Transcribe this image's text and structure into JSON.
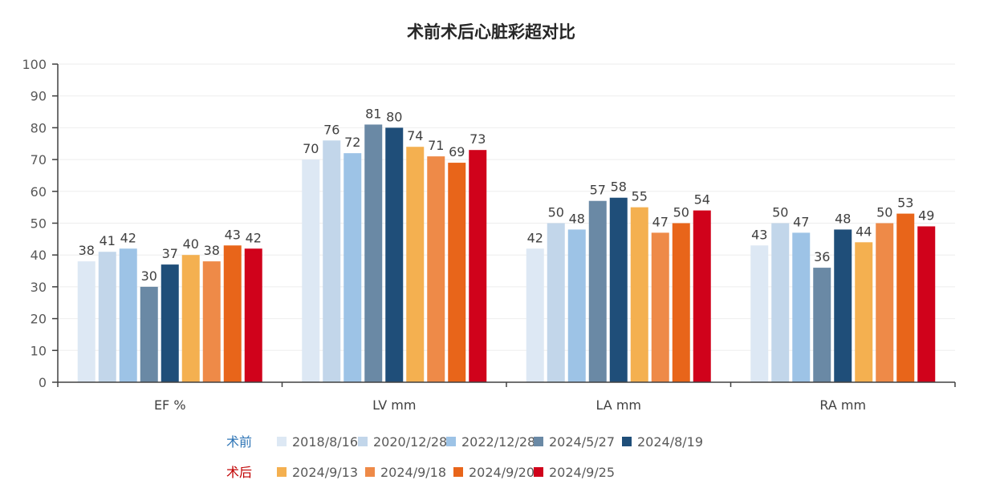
{
  "chart_data": {
    "type": "bar",
    "title": "术前术后心脏彩超对比",
    "categories": [
      "EF %",
      "LV mm",
      "LA mm",
      "RA mm"
    ],
    "ylim": [
      0,
      100
    ],
    "yticks": [
      0,
      10,
      20,
      30,
      40,
      50,
      60,
      70,
      80,
      90,
      100
    ],
    "grid": true,
    "legend_position": "bottom",
    "legend_groups": [
      {
        "label": "术前",
        "color": "#2e75b6",
        "series": [
          0,
          1,
          2,
          3,
          4
        ]
      },
      {
        "label": "术后",
        "color": "#c00000",
        "series": [
          5,
          6,
          7,
          8
        ]
      }
    ],
    "series": [
      {
        "name": "2018/8/16",
        "color": "#dde8f4",
        "values": [
          38,
          70,
          42,
          43
        ]
      },
      {
        "name": "2020/12/28",
        "color": "#c2d6ea",
        "values": [
          41,
          76,
          50,
          50
        ]
      },
      {
        "name": "2022/12/28",
        "color": "#9dc3e6",
        "values": [
          42,
          72,
          48,
          47
        ]
      },
      {
        "name": "2024/5/27",
        "color": "#6a89a5",
        "values": [
          30,
          81,
          57,
          36
        ]
      },
      {
        "name": "2024/8/19",
        "color": "#1f4e79",
        "values": [
          37,
          80,
          58,
          48
        ]
      },
      {
        "name": "2024/9/13",
        "color": "#f4b050",
        "values": [
          40,
          74,
          55,
          44
        ]
      },
      {
        "name": "2024/9/18",
        "color": "#ee8a48",
        "values": [
          38,
          71,
          47,
          50
        ]
      },
      {
        "name": "2024/9/20",
        "color": "#e8651a",
        "values": [
          43,
          69,
          50,
          53
        ]
      },
      {
        "name": "2024/9/25",
        "color": "#d0021b",
        "values": [
          42,
          73,
          54,
          49
        ]
      }
    ]
  }
}
